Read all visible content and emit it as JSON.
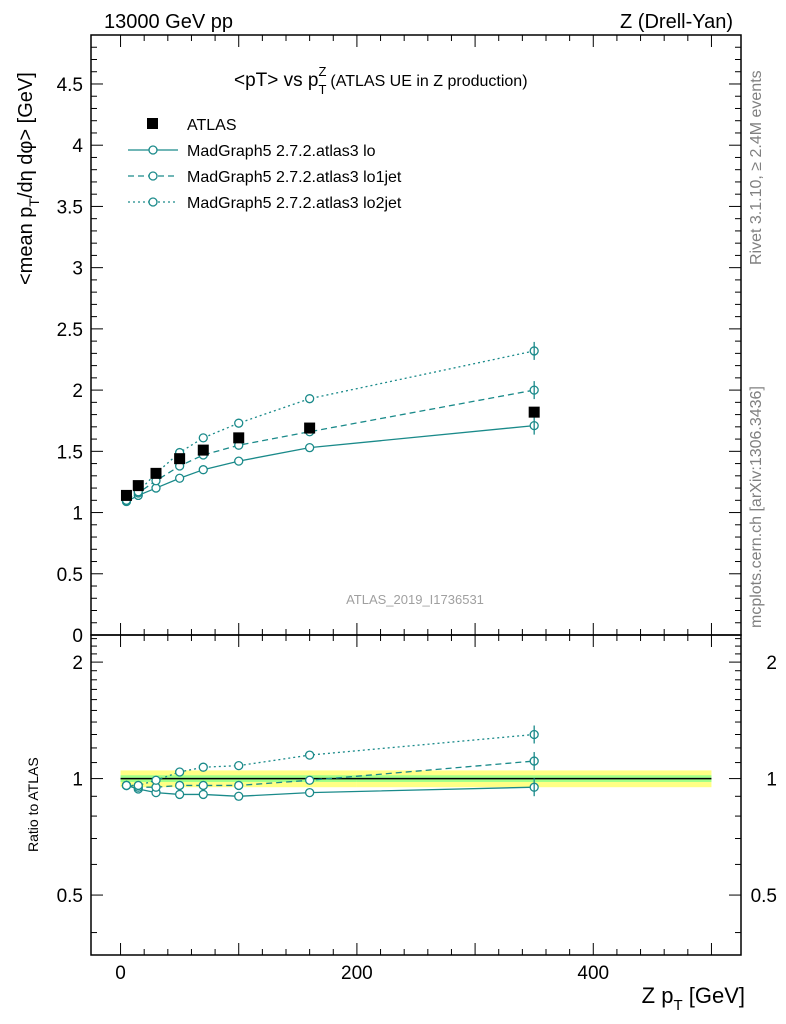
{
  "header": {
    "left": "13000 GeV pp",
    "right": "Z (Drell-Yan)"
  },
  "side_labels": {
    "rivet": "Rivet 3.1.10, ≥ 2.4M events",
    "mcplots": "mcplots.cern.ch [arXiv:1306.3436]"
  },
  "colors": {
    "data": "#000000",
    "mc": "#1a8a8a",
    "band_inner": "#88ff88",
    "band_outer": "#ffff66"
  },
  "chart_data": [
    {
      "type": "scatter",
      "title": "<pT> vs p_T^Z (ATLAS UE in Z production)",
      "analysis_label": "ATLAS_2019_I1736531",
      "xlabel": "",
      "ylabel": "<mean p_T/dη dφ> [GeV]",
      "xlim": [
        -25,
        525
      ],
      "ylim": [
        0,
        4.9
      ],
      "yticks": [
        "0",
        "0.5",
        "1",
        "1.5",
        "2",
        "2.5",
        "3",
        "3.5",
        "4",
        "4.5"
      ],
      "legend_position": "top-left",
      "x": [
        5,
        15,
        30,
        50,
        70,
        100,
        160,
        350
      ],
      "series": [
        {
          "name": "ATLAS",
          "style": "data",
          "values": [
            1.14,
            1.22,
            1.32,
            1.44,
            1.51,
            1.61,
            1.69,
            1.82
          ]
        },
        {
          "name": "MadGraph5 2.7.2.atlas3 lo",
          "style": "solid",
          "values": [
            1.09,
            1.14,
            1.2,
            1.28,
            1.35,
            1.42,
            1.53,
            1.71
          ]
        },
        {
          "name": "MadGraph5 2.7.2.atlas3 lo1jet",
          "style": "dashed",
          "values": [
            1.1,
            1.16,
            1.26,
            1.38,
            1.47,
            1.55,
            1.66,
            2.0
          ]
        },
        {
          "name": "MadGraph5 2.7.2.atlas3 lo2jet",
          "style": "dotted",
          "values": [
            1.1,
            1.17,
            1.32,
            1.49,
            1.61,
            1.73,
            1.93,
            2.32
          ]
        }
      ]
    },
    {
      "type": "line",
      "title": "",
      "xlabel": "Z p_T [GeV]",
      "ylabel": "Ratio to ATLAS",
      "xlim": [
        -25,
        525
      ],
      "ylim": [
        0.35,
        2.35
      ],
      "log_y": true,
      "xticks": [
        "0",
        "200",
        "400"
      ],
      "yticks": [
        "0.5",
        "1",
        "2"
      ],
      "x": [
        5,
        15,
        30,
        50,
        70,
        100,
        160,
        350
      ],
      "band": {
        "edges": [
          0,
          200,
          500
        ],
        "inner": [
          0.02,
          0.02
        ],
        "outer": [
          0.05,
          0.05
        ]
      },
      "series": [
        {
          "name": "MadGraph5 2.7.2.atlas3 lo",
          "style": "solid",
          "values": [
            0.96,
            0.94,
            0.92,
            0.91,
            0.91,
            0.9,
            0.92,
            0.95
          ]
        },
        {
          "name": "MadGraph5 2.7.2.atlas3 lo1jet",
          "style": "dashed",
          "values": [
            0.96,
            0.95,
            0.95,
            0.96,
            0.96,
            0.96,
            0.99,
            1.11
          ]
        },
        {
          "name": "MadGraph5 2.7.2.atlas3 lo2jet",
          "style": "dotted",
          "values": [
            0.96,
            0.96,
            0.99,
            1.04,
            1.07,
            1.08,
            1.15,
            1.3
          ]
        }
      ]
    }
  ]
}
